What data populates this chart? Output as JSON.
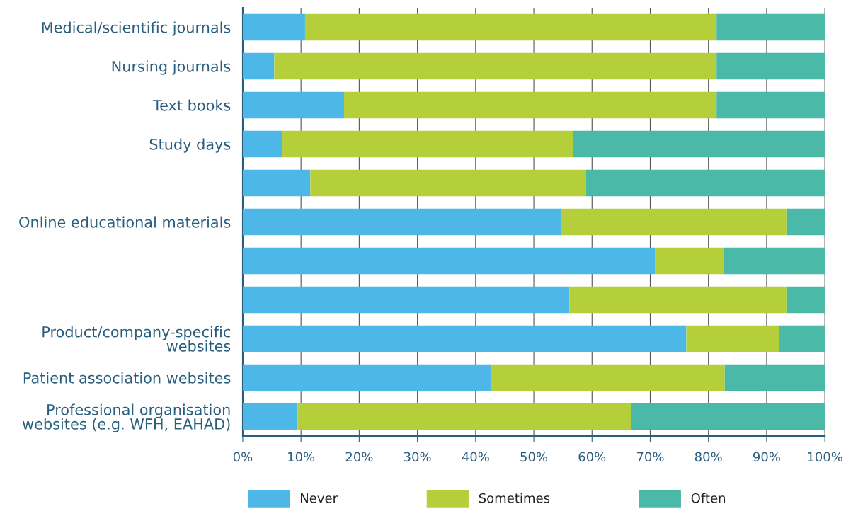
{
  "chart_data": {
    "type": "bar",
    "orientation": "horizontal",
    "stacked": true,
    "categories": [
      "Medical/scientific journals",
      "Nursing journals",
      "Text books",
      "Study days",
      null,
      "Online educational materials",
      null,
      null,
      "Product/company-specific\nwebsites",
      "Patient association websites",
      "Professional organisation\nwebsites (e.g. WFH, EAHAD)"
    ],
    "series": [
      {
        "name": "Never",
        "color": "#4db8e8",
        "values": [
          10.7,
          5.4,
          17.4,
          6.8,
          11.6,
          54.7,
          70.8,
          56.1,
          76.2,
          42.6,
          9.4
        ]
      },
      {
        "name": "Sometimes",
        "color": "#b5cf3a",
        "values": [
          70.7,
          76.0,
          64.0,
          50.0,
          47.4,
          38.7,
          11.9,
          37.3,
          15.9,
          40.2,
          57.3
        ]
      },
      {
        "name": "Often",
        "color": "#4ab9a8",
        "values": [
          18.6,
          18.6,
          18.6,
          43.2,
          41.0,
          6.6,
          17.3,
          6.6,
          7.9,
          17.2,
          33.3
        ]
      }
    ],
    "xlim": [
      0,
      100
    ],
    "xticks": [
      {
        "value": 0,
        "label": "0%"
      },
      {
        "value": 10,
        "label": "10%"
      },
      {
        "value": 20,
        "label": "20%"
      },
      {
        "value": 30,
        "label": "30%"
      },
      {
        "value": 40,
        "label": "40%"
      },
      {
        "value": 50,
        "label": "50%"
      },
      {
        "value": 60,
        "label": "60%"
      },
      {
        "value": 70,
        "label": "70%"
      },
      {
        "value": 80,
        "label": "80%"
      },
      {
        "value": 90,
        "label": "90%"
      },
      {
        "value": 100,
        "label": "100%"
      }
    ],
    "grid": "x",
    "legend": "bottom"
  }
}
